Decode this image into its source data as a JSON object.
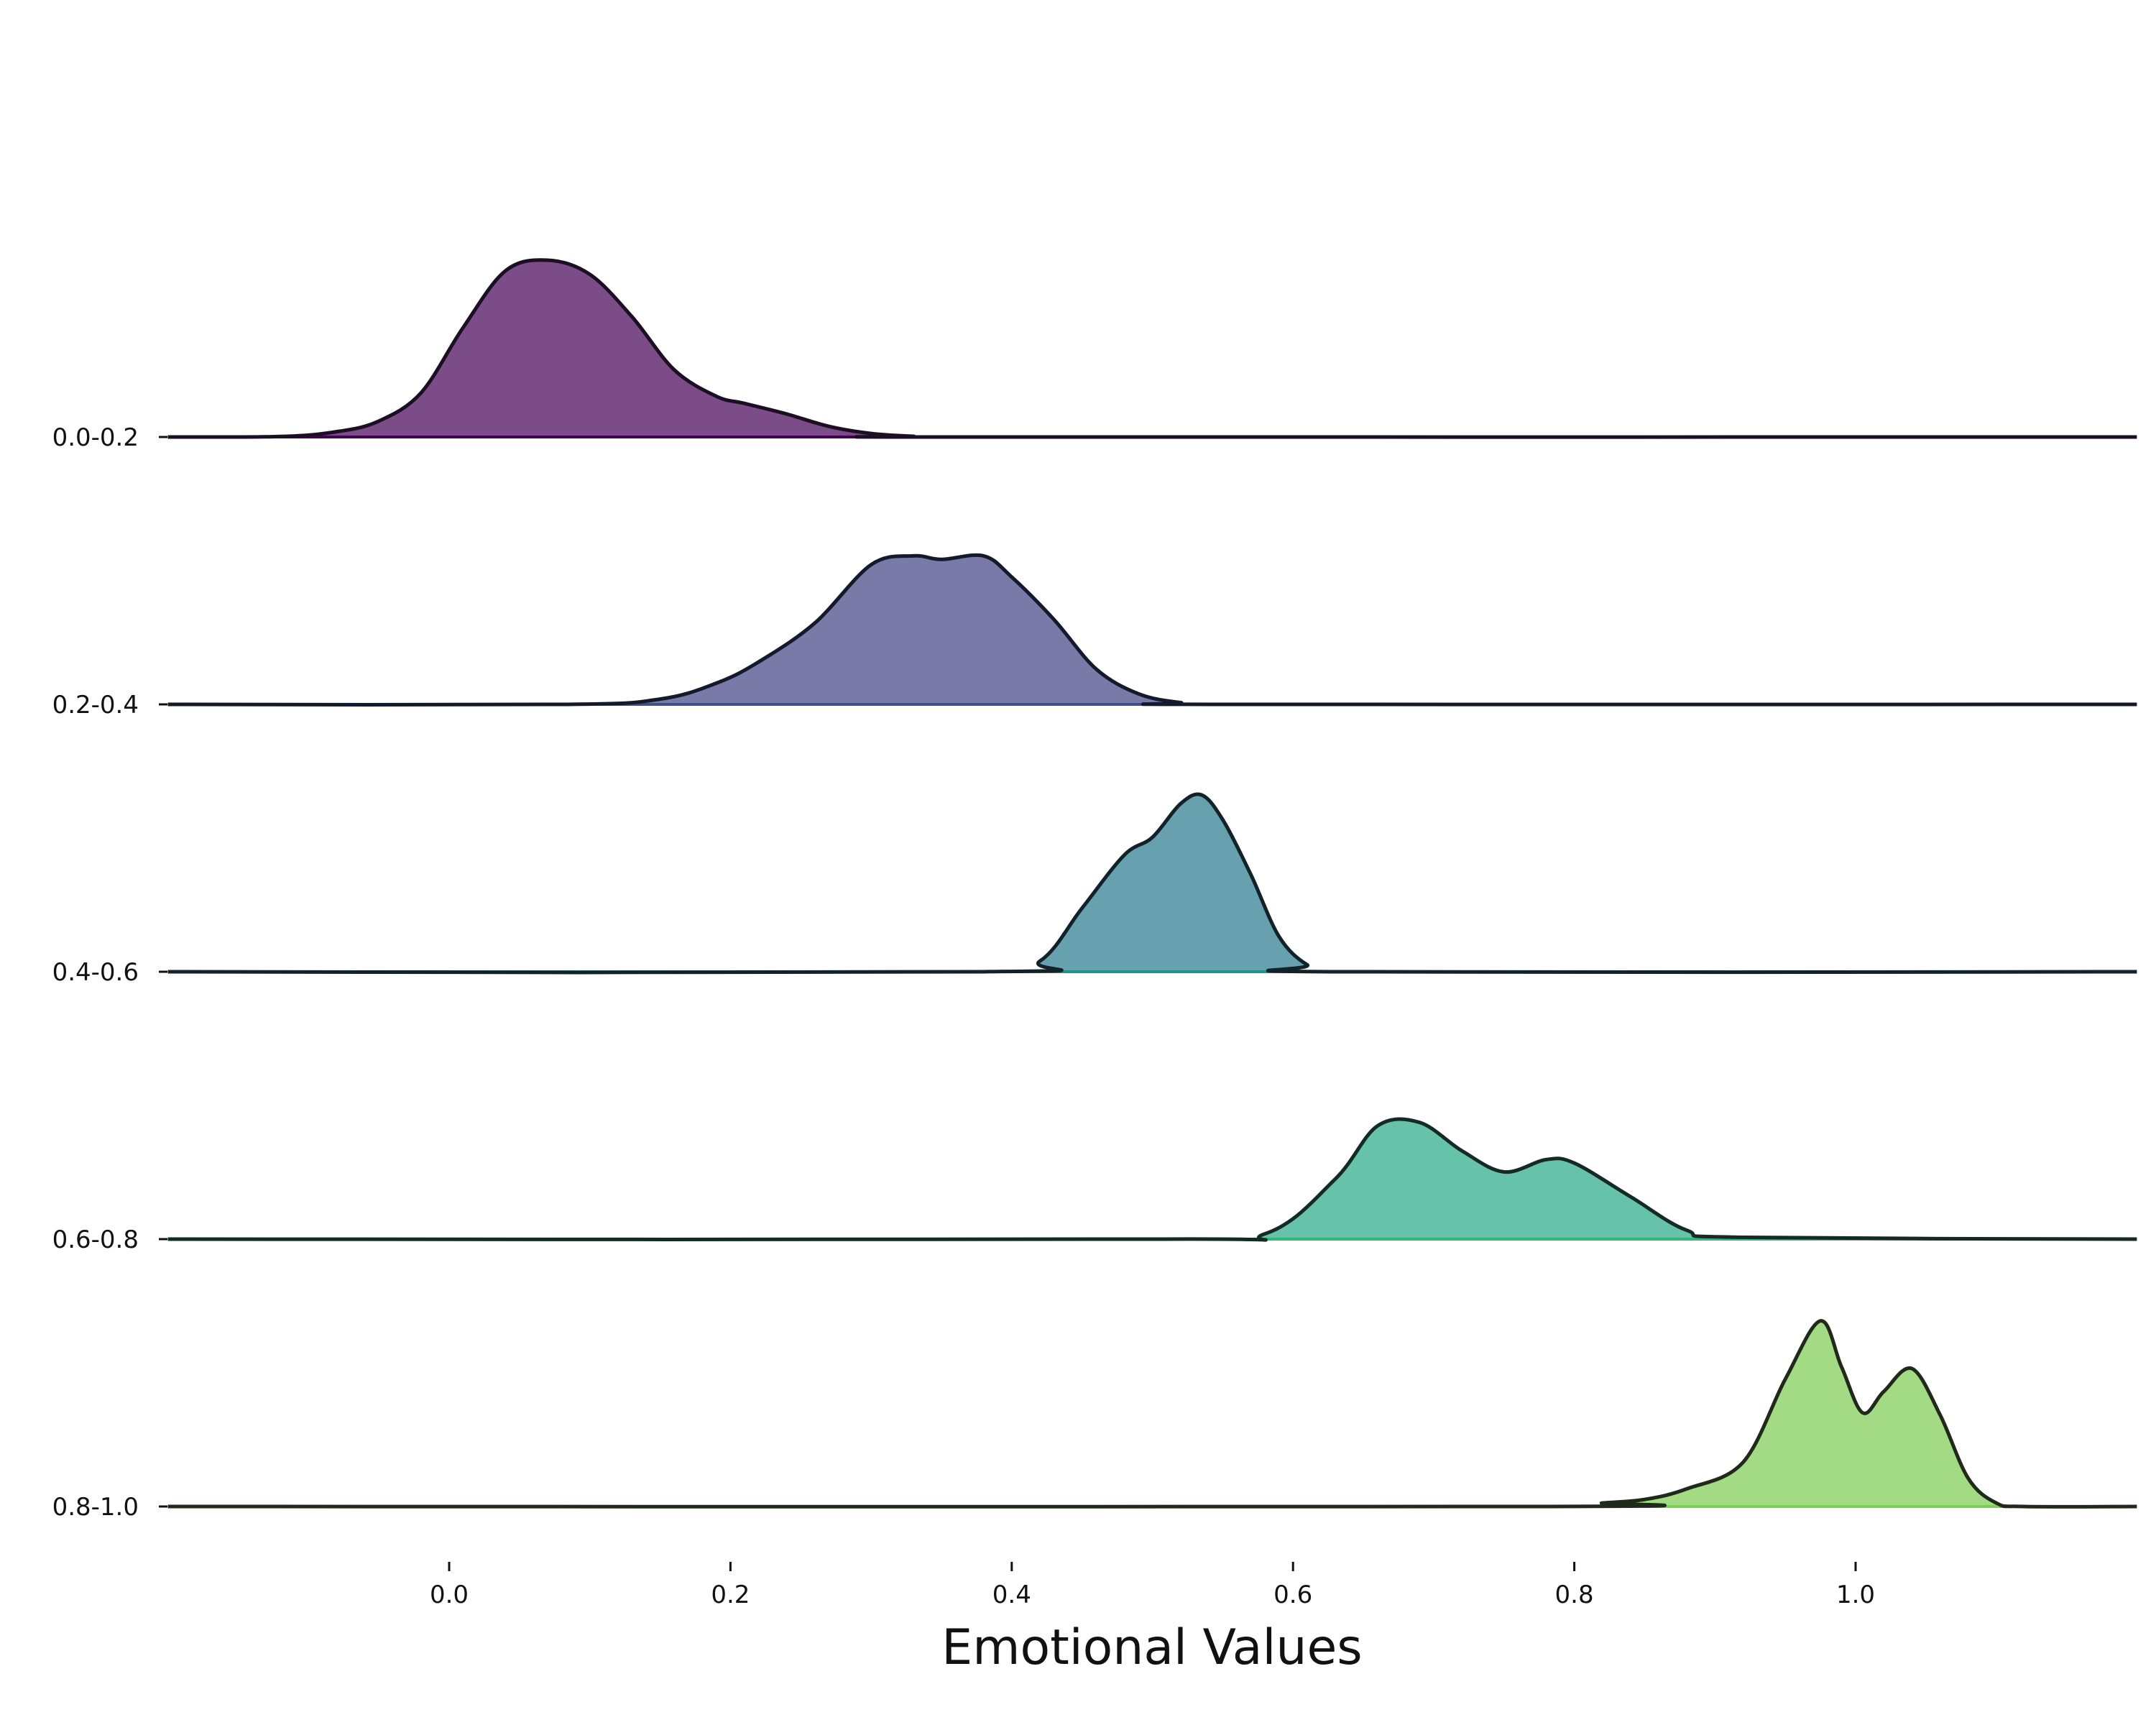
{
  "chart_data": {
    "type": "ridgeline",
    "title": "",
    "xlabel": "Emotional Values",
    "ylabel": "",
    "xlim": [
      -0.2,
      1.2
    ],
    "x_ticks": [
      0.0,
      0.2,
      0.4,
      0.6,
      0.8,
      1.0
    ],
    "x_tick_labels": [
      "0.0",
      "0.2",
      "0.4",
      "0.6",
      "0.8",
      "1.0"
    ],
    "grid": false,
    "categories": [
      "0.0-0.2",
      "0.2-0.4",
      "0.4-0.6",
      "0.6-0.8",
      "0.8-1.0"
    ],
    "series": [
      {
        "category": "0.0-0.2",
        "color": "#7b4c87",
        "edge_color": "#1c0f24",
        "base_color": "#440154",
        "density_points": [
          [
            -0.2,
            0
          ],
          [
            -0.12,
            0.003
          ],
          [
            -0.08,
            0.03
          ],
          [
            -0.05,
            0.09
          ],
          [
            -0.02,
            0.25
          ],
          [
            0.01,
            0.62
          ],
          [
            0.04,
            0.94
          ],
          [
            0.07,
            1.0
          ],
          [
            0.1,
            0.92
          ],
          [
            0.13,
            0.68
          ],
          [
            0.16,
            0.38
          ],
          [
            0.19,
            0.23
          ],
          [
            0.21,
            0.19
          ],
          [
            0.24,
            0.13
          ],
          [
            0.27,
            0.06
          ],
          [
            0.3,
            0.02
          ],
          [
            0.33,
            0.004
          ],
          [
            0.36,
            0
          ],
          [
            1.2,
            0
          ]
        ]
      },
      {
        "category": "0.2-0.4",
        "color": "#7a7aa9",
        "edge_color": "#141a2c",
        "base_color": "#3b528b",
        "density_points": [
          [
            -0.2,
            0
          ],
          [
            0.08,
            0
          ],
          [
            0.15,
            0.03
          ],
          [
            0.19,
            0.12
          ],
          [
            0.22,
            0.24
          ],
          [
            0.26,
            0.46
          ],
          [
            0.3,
            0.79
          ],
          [
            0.33,
            0.84
          ],
          [
            0.35,
            0.82
          ],
          [
            0.38,
            0.84
          ],
          [
            0.4,
            0.72
          ],
          [
            0.43,
            0.48
          ],
          [
            0.46,
            0.2
          ],
          [
            0.49,
            0.06
          ],
          [
            0.52,
            0.01
          ],
          [
            0.55,
            0
          ],
          [
            1.2,
            0
          ]
        ]
      },
      {
        "category": "0.4-0.6",
        "color": "#67a1b0",
        "edge_color": "#132128",
        "base_color": "#21918c",
        "density_points": [
          [
            -0.2,
            0
          ],
          [
            0.38,
            0
          ],
          [
            0.42,
            0.06
          ],
          [
            0.45,
            0.36
          ],
          [
            0.48,
            0.66
          ],
          [
            0.5,
            0.76
          ],
          [
            0.52,
            0.95
          ],
          [
            0.535,
            1.0
          ],
          [
            0.55,
            0.86
          ],
          [
            0.57,
            0.55
          ],
          [
            0.59,
            0.2
          ],
          [
            0.61,
            0.04
          ],
          [
            0.63,
            0
          ],
          [
            1.2,
            0
          ]
        ]
      },
      {
        "category": "0.6-0.8",
        "color": "#66c2a8",
        "edge_color": "#142a26",
        "base_color": "#35b779",
        "density_points": [
          [
            -0.2,
            0
          ],
          [
            0.5,
            0
          ],
          [
            0.58,
            0.03
          ],
          [
            0.63,
            0.34
          ],
          [
            0.66,
            0.64
          ],
          [
            0.69,
            0.66
          ],
          [
            0.72,
            0.5
          ],
          [
            0.75,
            0.38
          ],
          [
            0.78,
            0.45
          ],
          [
            0.8,
            0.43
          ],
          [
            0.84,
            0.24
          ],
          [
            0.88,
            0.05
          ],
          [
            0.92,
            0.01
          ],
          [
            1.2,
            0
          ]
        ]
      },
      {
        "category": "0.8-1.0",
        "color": "#a2db84",
        "edge_color": "#1f2a1a",
        "base_color": "#7ad151",
        "density_points": [
          [
            -0.2,
            0
          ],
          [
            0.78,
            0
          ],
          [
            0.82,
            0.02
          ],
          [
            0.85,
            0.04
          ],
          [
            0.88,
            0.1
          ],
          [
            0.92,
            0.25
          ],
          [
            0.95,
            0.72
          ],
          [
            0.975,
            1.05
          ],
          [
            0.99,
            0.79
          ],
          [
            1.005,
            0.53
          ],
          [
            1.02,
            0.65
          ],
          [
            1.04,
            0.78
          ],
          [
            1.06,
            0.52
          ],
          [
            1.08,
            0.16
          ],
          [
            1.1,
            0.02
          ],
          [
            1.12,
            0
          ],
          [
            1.2,
            0
          ]
        ]
      }
    ]
  }
}
